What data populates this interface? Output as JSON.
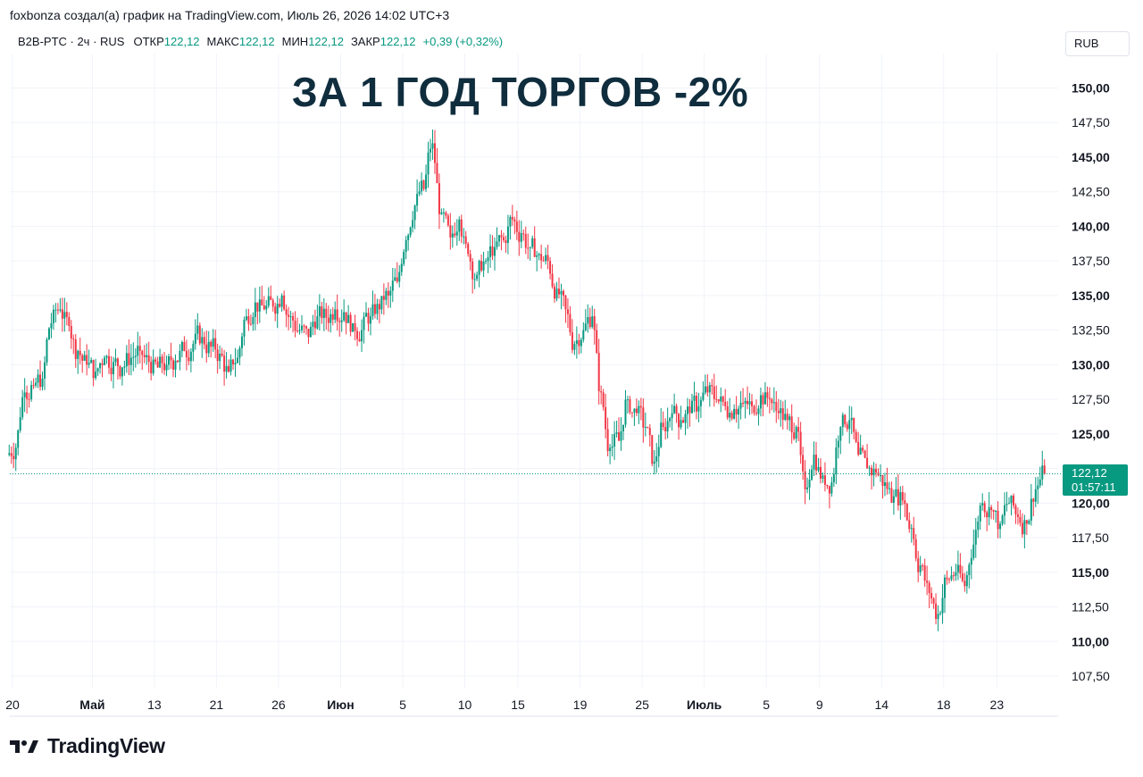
{
  "caption": "foxbonza создал(а) график на TradingView.com, Июль 26, 2026 14:02 UTC+3",
  "legend": {
    "symbol": "B2B-PTC · 2ч · RUS",
    "open_label": "ОТКР",
    "open_value": "122,12",
    "high_label": "МАКС",
    "high_value": "122,12",
    "low_label": "МИН",
    "low_value": "122,12",
    "close_label": "ЗАКР",
    "close_value": "122,12",
    "change": "+0,39 (+0,32%)"
  },
  "currency": "RUB",
  "headline": "ЗА 1 ГОД ТОРГОВ -2%",
  "brand": {
    "name": "TradingView",
    "icon": "tradingview-logo-icon"
  },
  "last_price": {
    "value": "122,12",
    "countdown": "01:57:11"
  },
  "colors": {
    "up": "#089981",
    "down": "#f23645",
    "grid": "#f0f3fa",
    "text": "#131722",
    "headline": "#0f2d3d"
  },
  "chart_data": {
    "type": "candlestick",
    "y_ticks": [
      "150,00",
      "147,50",
      "145,00",
      "142,50",
      "140,00",
      "137,50",
      "135,00",
      "132,50",
      "130,00",
      "127,50",
      "125,00",
      "122,50",
      "120,00",
      "117,50",
      "115,00",
      "112,50",
      "110,00",
      "107,50"
    ],
    "y_tick_values": [
      150,
      147.5,
      145,
      142.5,
      140,
      137.5,
      135,
      132.5,
      130,
      127.5,
      125,
      122.5,
      120,
      117.5,
      115,
      112.5,
      110,
      107.5
    ],
    "bold_ticks": [
      150,
      145,
      140,
      135,
      130,
      125,
      120,
      115,
      110
    ],
    "ylim": [
      106.2,
      152.4
    ],
    "x_ticks": [
      {
        "label": "20",
        "i": 0,
        "bold": false
      },
      {
        "label": "Май",
        "i": 9,
        "bold": true
      },
      {
        "label": "13",
        "i": 16,
        "bold": false
      },
      {
        "label": "21",
        "i": 23,
        "bold": false
      },
      {
        "label": "26",
        "i": 30,
        "bold": false
      },
      {
        "label": "Июн",
        "i": 37,
        "bold": true
      },
      {
        "label": "5",
        "i": 44,
        "bold": false
      },
      {
        "label": "10",
        "i": 51,
        "bold": false
      },
      {
        "label": "15",
        "i": 57,
        "bold": false
      },
      {
        "label": "19",
        "i": 64,
        "bold": false
      },
      {
        "label": "25",
        "i": 71,
        "bold": false
      },
      {
        "label": "Июль",
        "i": 78,
        "bold": true
      },
      {
        "label": "5",
        "i": 85,
        "bold": false
      },
      {
        "label": "9",
        "i": 91,
        "bold": false
      },
      {
        "label": "14",
        "i": 98,
        "bold": false
      },
      {
        "label": "18",
        "i": 105,
        "bold": false
      },
      {
        "label": "23",
        "i": 111,
        "bold": false
      }
    ],
    "closes": [
      124,
      128,
      128.5,
      129,
      133,
      134,
      132.8,
      131,
      130,
      129.5,
      130.5,
      130.2,
      129.8,
      130.5,
      131,
      130.2,
      129.8,
      130,
      130.3,
      131,
      131.5,
      132,
      131.3,
      130.8,
      129.5,
      130.5,
      133.5,
      134.5,
      134,
      134.2,
      135,
      133.5,
      132.5,
      132,
      133.5,
      133.4,
      134,
      133.8,
      133,
      132.5,
      133.5,
      134,
      135,
      136,
      139,
      141.5,
      142.7,
      146,
      141,
      139.2,
      140.5,
      138,
      136.5,
      137.5,
      138.5,
      139,
      140.5,
      139.5,
      138.5,
      138,
      137.5,
      135.5,
      134,
      131.5,
      132.5,
      133.5,
      128,
      124,
      124.5,
      127.5,
      126.5,
      125.5,
      123,
      125.5,
      126.5,
      126,
      126.5,
      127,
      128,
      127.5,
      127,
      126.8,
      127.2,
      127,
      127.8,
      127.5,
      126.5,
      126,
      125.5,
      121,
      123.5,
      122,
      121.5,
      125.5,
      126,
      123.5,
      122.5,
      122.2,
      121.5,
      120.5,
      120.2,
      118.2,
      115.5,
      113.5,
      112,
      114.5,
      115,
      114,
      117,
      120,
      119.5,
      118.5,
      120,
      119,
      118.5,
      121,
      122.12
    ],
    "last_close": 122.12
  }
}
